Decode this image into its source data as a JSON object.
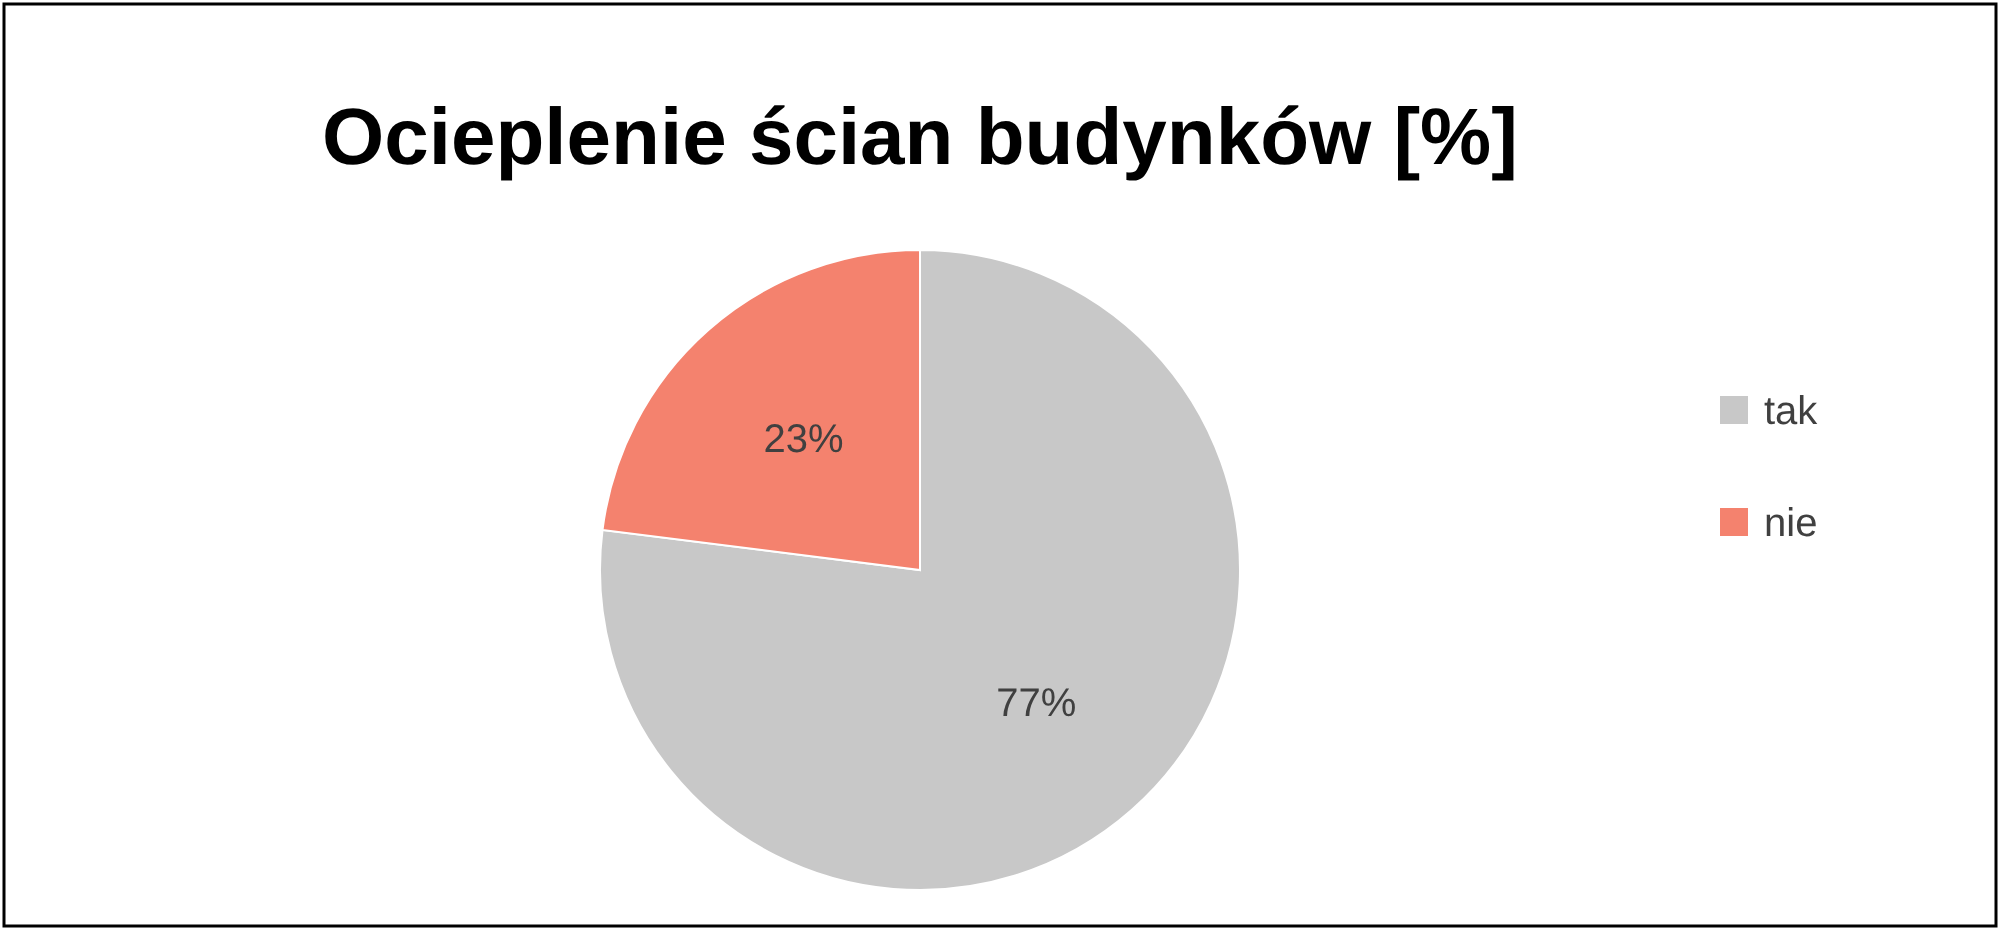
{
  "chart_data": {
    "type": "pie",
    "title": "Ocieplenie ścian budynków [%]",
    "categories": [
      "tak",
      "nie"
    ],
    "values": [
      77,
      23
    ],
    "colors": [
      "#c8c8c8",
      "#f4826e"
    ],
    "value_labels": [
      "77%",
      "23%"
    ],
    "legend": "right"
  }
}
